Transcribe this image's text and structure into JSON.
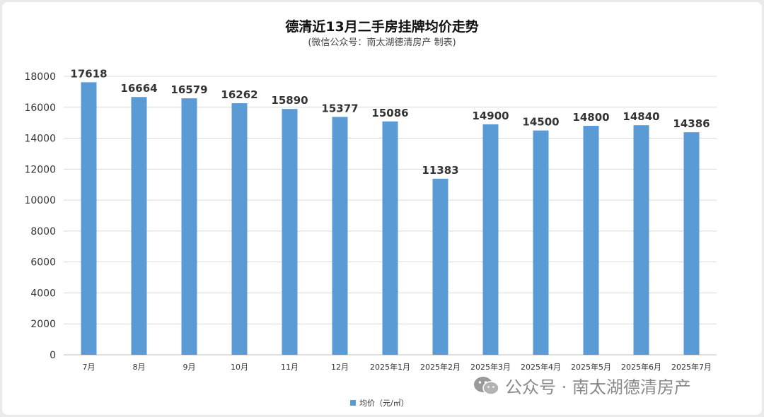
{
  "colors": {
    "bar": "#5b9bd5",
    "grid": "#d9d9d9",
    "axis": "#bfbfbf"
  },
  "chart_data": {
    "type": "bar",
    "title": "德清近13月二手房挂牌均价走势",
    "subtitle": "(微信公众号：南太湖德清房产 制表)",
    "categories": [
      "7月",
      "8月",
      "9月",
      "10月",
      "11月",
      "12月",
      "2025年1月",
      "2025年2月",
      "2025年3月",
      "2025年4月",
      "2025年5月",
      "2025年6月",
      "2025年7月"
    ],
    "series": [
      {
        "name": "均价（元/㎡）",
        "values": [
          17618,
          16664,
          16579,
          16262,
          15890,
          15377,
          15086,
          11383,
          14900,
          14500,
          14800,
          14840,
          14386
        ]
      }
    ],
    "yticks": [
      0,
      2000,
      4000,
      6000,
      8000,
      10000,
      12000,
      14000,
      16000,
      18000
    ],
    "ylim": [
      0,
      18000
    ],
    "xlabel": "",
    "ylabel": "",
    "grid": true,
    "legend_position": "bottom-center"
  },
  "watermark": {
    "icon": "wechat-icon",
    "text": "公众号 · 南太湖德清房产"
  }
}
